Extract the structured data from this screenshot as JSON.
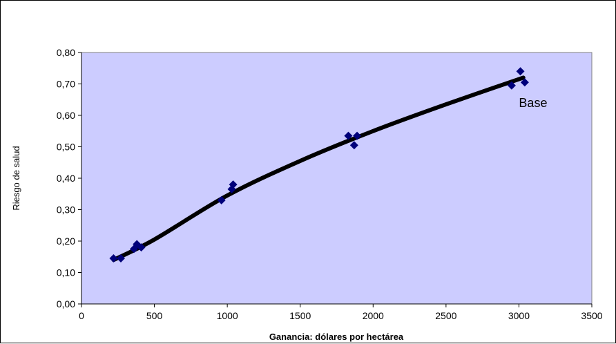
{
  "chart_data": {
    "type": "scatter",
    "title": "",
    "xlabel": "Ganancia: dólares por hectárea",
    "ylabel": "Riesgo de salud",
    "xlim": [
      0,
      3500
    ],
    "ylim": [
      0,
      0.8
    ],
    "x_ticks": [
      "0",
      "500",
      "1000",
      "1500",
      "2000",
      "2500",
      "3000",
      "3500"
    ],
    "y_ticks": [
      "0,00",
      "0,10",
      "0,20",
      "0,30",
      "0,40",
      "0,50",
      "0,60",
      "0,70",
      "0,80"
    ],
    "plot_background": "#ccccff",
    "marker_color": "#00007a",
    "trend_color": "#000000",
    "grid": false,
    "legend": "none",
    "series": [
      {
        "marker": "diamond",
        "points": [
          {
            "x": 220,
            "y": 0.145
          },
          {
            "x": 270,
            "y": 0.145
          },
          {
            "x": 360,
            "y": 0.175
          },
          {
            "x": 380,
            "y": 0.19
          },
          {
            "x": 410,
            "y": 0.18
          },
          {
            "x": 960,
            "y": 0.33
          },
          {
            "x": 1030,
            "y": 0.365
          },
          {
            "x": 1040,
            "y": 0.38
          },
          {
            "x": 1830,
            "y": 0.535
          },
          {
            "x": 1870,
            "y": 0.505
          },
          {
            "x": 1890,
            "y": 0.535
          },
          {
            "x": 2950,
            "y": 0.695
          },
          {
            "x": 3010,
            "y": 0.74
          },
          {
            "x": 3040,
            "y": 0.705
          }
        ]
      }
    ],
    "trendline": [
      {
        "x": 220,
        "y": 0.14
      },
      {
        "x": 500,
        "y": 0.205
      },
      {
        "x": 1000,
        "y": 0.345
      },
      {
        "x": 1500,
        "y": 0.455
      },
      {
        "x": 2000,
        "y": 0.55
      },
      {
        "x": 2500,
        "y": 0.635
      },
      {
        "x": 3030,
        "y": 0.72
      }
    ],
    "annotations": [
      {
        "text": "Base",
        "x": 3000,
        "y": 0.64
      }
    ]
  }
}
